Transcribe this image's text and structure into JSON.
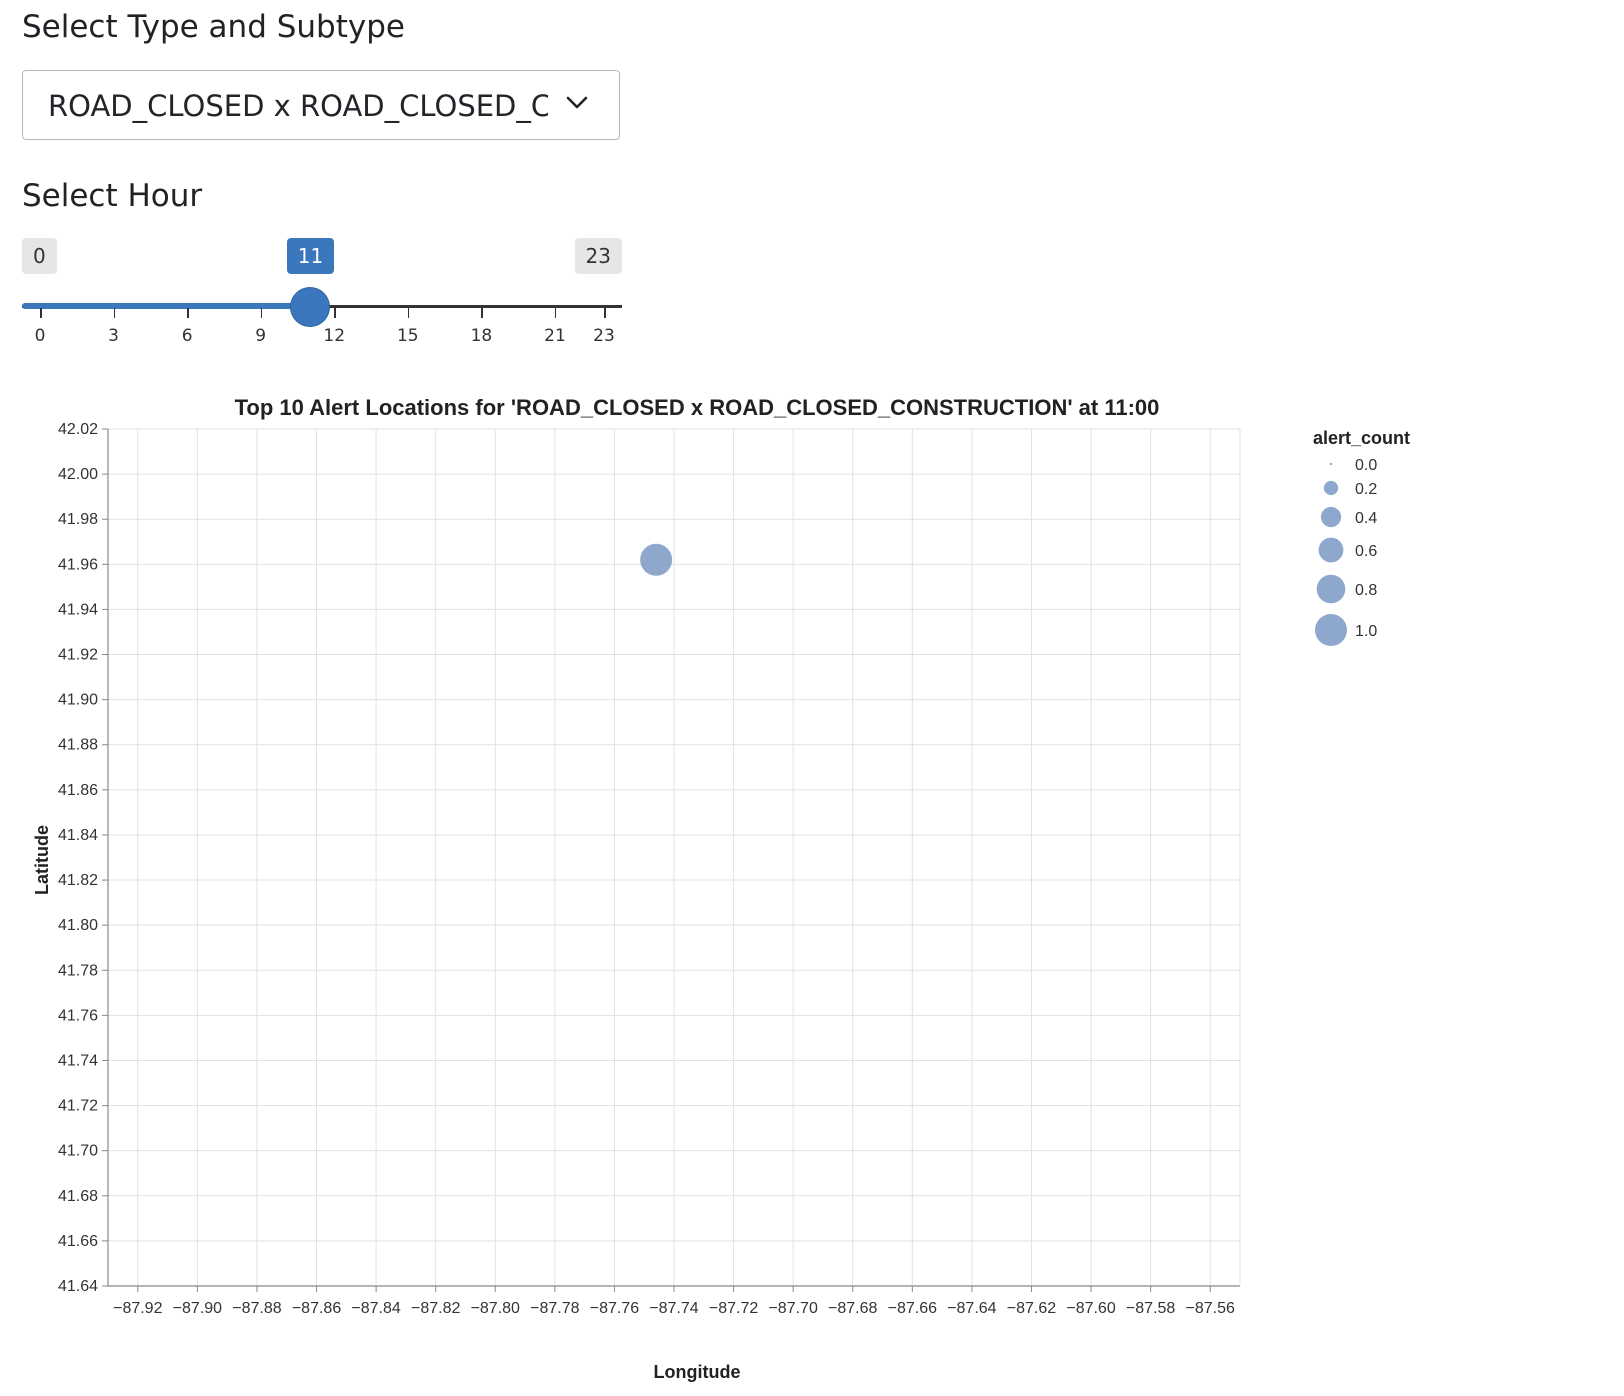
{
  "controls": {
    "type_label": "Select Type and Subtype",
    "type_select_value": "ROAD_CLOSED x ROAD_CLOSED_CO",
    "hour_label": "Select Hour",
    "hour_slider": {
      "min": 0,
      "max": 23,
      "value": 11,
      "min_label": "0",
      "max_label": "23",
      "value_label": "11",
      "ticks": [
        0,
        3,
        6,
        9,
        12,
        15,
        18,
        21,
        23
      ],
      "accent_color": "#3a77bd"
    }
  },
  "chart_data": {
    "type": "scatter",
    "title": "Top 10 Alert Locations for 'ROAD_CLOSED x ROAD_CLOSED_CONSTRUCTION' at 11:00",
    "xlabel": "Longitude",
    "ylabel": "Latitude",
    "xlim": [
      -87.93,
      -87.55
    ],
    "ylim": [
      41.64,
      42.02
    ],
    "x_ticks": [
      -87.92,
      -87.9,
      -87.88,
      -87.86,
      -87.84,
      -87.82,
      -87.8,
      -87.78,
      -87.76,
      -87.74,
      -87.72,
      -87.7,
      -87.68,
      -87.66,
      -87.64,
      -87.62,
      -87.6,
      -87.58,
      -87.56
    ],
    "x_tick_labels": [
      "−87.92",
      "−87.90",
      "−87.88",
      "−87.86",
      "−87.84",
      "−87.82",
      "−87.80",
      "−87.78",
      "−87.76",
      "−87.74",
      "−87.72",
      "−87.70",
      "−87.68",
      "−87.66",
      "−87.64",
      "−87.62",
      "−87.60",
      "−87.58",
      "−87.56"
    ],
    "y_ticks": [
      41.64,
      41.66,
      41.68,
      41.7,
      41.72,
      41.74,
      41.76,
      41.78,
      41.8,
      41.82,
      41.84,
      41.86,
      41.88,
      41.9,
      41.92,
      41.94,
      41.96,
      41.98,
      42.0,
      42.02
    ],
    "y_tick_labels": [
      "41.64",
      "41.66",
      "41.68",
      "41.70",
      "41.72",
      "41.74",
      "41.76",
      "41.78",
      "41.80",
      "41.82",
      "41.84",
      "41.86",
      "41.88",
      "41.90",
      "41.92",
      "41.94",
      "41.96",
      "41.98",
      "42.00",
      "42.02"
    ],
    "grid": true,
    "points": [
      {
        "x": -87.746,
        "y": 41.962,
        "alert_count": 1.0
      }
    ],
    "point_color": "#7a98c4",
    "legend": {
      "title": "alert_count",
      "placement": "right",
      "entries": [
        {
          "label": "0.0",
          "value": 0.0
        },
        {
          "label": "0.2",
          "value": 0.2
        },
        {
          "label": "0.4",
          "value": 0.4
        },
        {
          "label": "0.6",
          "value": 0.6
        },
        {
          "label": "0.8",
          "value": 0.8
        },
        {
          "label": "1.0",
          "value": 1.0
        }
      ]
    }
  }
}
